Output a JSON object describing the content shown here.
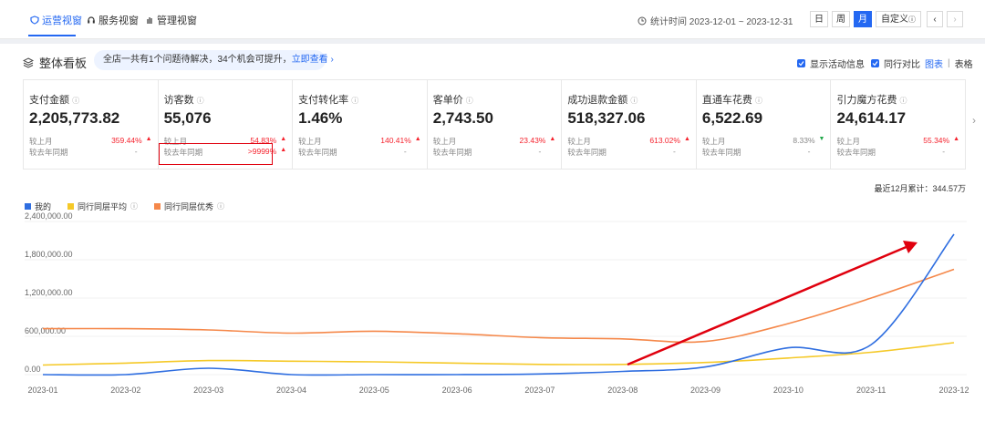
{
  "topbar": {
    "tabs": [
      {
        "label": "运营视窗",
        "icon": "shield-icon",
        "active": true
      },
      {
        "label": "服务视窗",
        "icon": "headset-icon",
        "active": false
      },
      {
        "label": "管理视窗",
        "icon": "hand-icon",
        "active": false
      }
    ],
    "stat_time": "统计时间 2023-12-01 ~ 2023-12-31",
    "periods": [
      "日",
      "周",
      "月",
      "自定义"
    ],
    "active_period": "月"
  },
  "header": {
    "title": "整体看板",
    "notice_text": "全店一共有1个问题待解决，34个机会可提升，",
    "notice_link": "立即查看",
    "opt_activity": "显示活动信息",
    "opt_peer": "同行对比",
    "view_chart": "图表",
    "view_sep": "|",
    "view_table": "表格"
  },
  "cards": [
    {
      "label": "支付金额",
      "value": "2,205,773.82",
      "mom_label": "较上月",
      "mom": "359.44%",
      "mom_dir": "up",
      "yoy_label": "较去年同期",
      "yoy": "-"
    },
    {
      "label": "访客数",
      "value": "55,076",
      "mom_label": "较上月",
      "mom": "54.83%",
      "mom_dir": "up",
      "yoy_label": "较去年同期",
      "yoy": ">9999%",
      "yoy_dir": "up"
    },
    {
      "label": "支付转化率",
      "value": "1.46%",
      "mom_label": "较上月",
      "mom": "140.41%",
      "mom_dir": "up",
      "yoy_label": "较去年同期",
      "yoy": "-"
    },
    {
      "label": "客单价",
      "value": "2,743.50",
      "mom_label": "较上月",
      "mom": "23.43%",
      "mom_dir": "up",
      "yoy_label": "较去年同期",
      "yoy": "-"
    },
    {
      "label": "成功退款金额",
      "value": "518,327.06",
      "mom_label": "较上月",
      "mom": "613.02%",
      "mom_dir": "up",
      "yoy_label": "较去年同期",
      "yoy": "-"
    },
    {
      "label": "直通车花费",
      "value": "6,522.69",
      "mom_label": "较上月",
      "mom": "8.33%",
      "mom_dir": "down",
      "yoy_label": "较去年同期",
      "yoy": "-"
    },
    {
      "label": "引力魔方花费",
      "value": "24,614.17",
      "mom_label": "较上月",
      "mom": "55.34%",
      "mom_dir": "up",
      "yoy_label": "较去年同期",
      "yoy": "-"
    }
  ],
  "cumulative": "最近12月累计：344.57万",
  "chart_data": {
    "type": "line",
    "categories": [
      "2023-01",
      "2023-02",
      "2023-03",
      "2023-04",
      "2023-05",
      "2023-06",
      "2023-07",
      "2023-08",
      "2023-09",
      "2023-10",
      "2023-11",
      "2023-12"
    ],
    "yticks": [
      "2,400,000.00",
      "1,800,000.00",
      "1,200,000.00",
      "600,000.00",
      "0.00"
    ],
    "ylim": [
      0,
      2400000
    ],
    "series": [
      {
        "name": "我的",
        "color": "#2f6ee0",
        "values": [
          0,
          0,
          100000,
          0,
          0,
          0,
          10000,
          50000,
          120000,
          420000,
          470000,
          2200000
        ]
      },
      {
        "name": "同行同层平均",
        "color": "#f5c928",
        "values": [
          150000,
          180000,
          220000,
          210000,
          200000,
          180000,
          160000,
          160000,
          190000,
          260000,
          350000,
          500000
        ]
      },
      {
        "name": "同行同层优秀",
        "color": "#f5884a",
        "values": [
          720000,
          720000,
          700000,
          650000,
          680000,
          640000,
          580000,
          560000,
          520000,
          800000,
          1200000,
          1650000
        ]
      }
    ]
  }
}
